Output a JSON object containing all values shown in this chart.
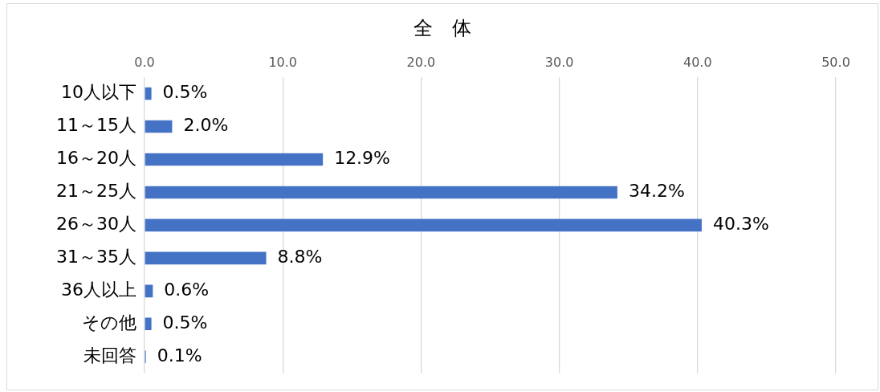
{
  "chart_data": {
    "type": "bar",
    "orientation": "horizontal",
    "title": "全　体",
    "categories": [
      "10人以下",
      "11～15人",
      "16～20人",
      "21～25人",
      "26～30人",
      "31～35人",
      "36人以上",
      "その他",
      "未回答"
    ],
    "values": [
      0.5,
      2.0,
      12.9,
      34.2,
      40.3,
      8.8,
      0.6,
      0.5,
      0.1
    ],
    "value_labels": [
      "0.5%",
      "2.0%",
      "12.9%",
      "34.2%",
      "40.3%",
      "8.8%",
      "0.6%",
      "0.5%",
      "0.1%"
    ],
    "color": "#4472c4",
    "xlim": [
      0,
      50
    ],
    "xticks": [
      {
        "value": 0,
        "label": "0.0"
      },
      {
        "value": 10,
        "label": "10.0"
      },
      {
        "value": 20,
        "label": "20.0"
      },
      {
        "value": 30,
        "label": "30.0"
      },
      {
        "value": 40,
        "label": "40.0"
      },
      {
        "value": 50,
        "label": "50.0"
      }
    ],
    "grid": "x",
    "legend": false
  }
}
